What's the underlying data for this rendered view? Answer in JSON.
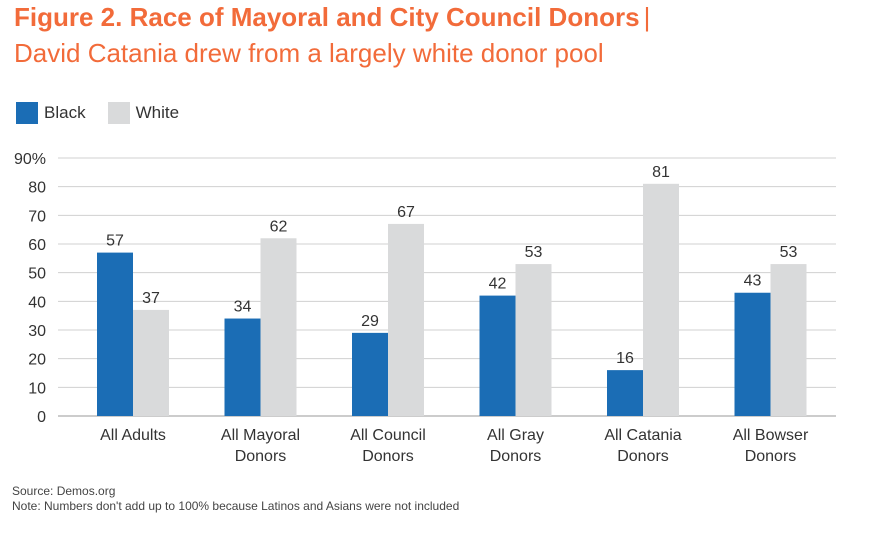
{
  "title": {
    "main": "Figure 2. Race of Mayoral and City Council Donors",
    "separator": "|",
    "subtitle": "David Catania drew from a largely white donor pool"
  },
  "colors": {
    "black": "#1b6db5",
    "white": "#d9dadb",
    "title": "#f26b3a"
  },
  "chart_data": {
    "type": "bar",
    "categories": [
      [
        "All Adults"
      ],
      [
        "All Mayoral",
        "Donors"
      ],
      [
        "All Council",
        "Donors"
      ],
      [
        "All Gray",
        "Donors"
      ],
      [
        "All Catania",
        "Donors"
      ],
      [
        "All Bowser",
        "Donors"
      ]
    ],
    "series": [
      {
        "name": "Black",
        "color": "#1b6db5",
        "values": [
          57,
          34,
          29,
          42,
          16,
          43
        ]
      },
      {
        "name": "White",
        "color": "#d9dadb",
        "values": [
          37,
          62,
          67,
          53,
          81,
          53
        ]
      }
    ],
    "ylim": [
      0,
      90
    ],
    "yticks": [
      0,
      10,
      20,
      30,
      40,
      50,
      60,
      70,
      80,
      90
    ],
    "ytick_labels": [
      "0",
      "10",
      "20",
      "30",
      "40",
      "50",
      "60",
      "70",
      "80",
      "90%"
    ],
    "grid": true,
    "legend": "top-left"
  },
  "footer": {
    "source": "Source: Demos.org",
    "note": "Note: Numbers don't add up to 100% because Latinos and Asians were not included"
  }
}
